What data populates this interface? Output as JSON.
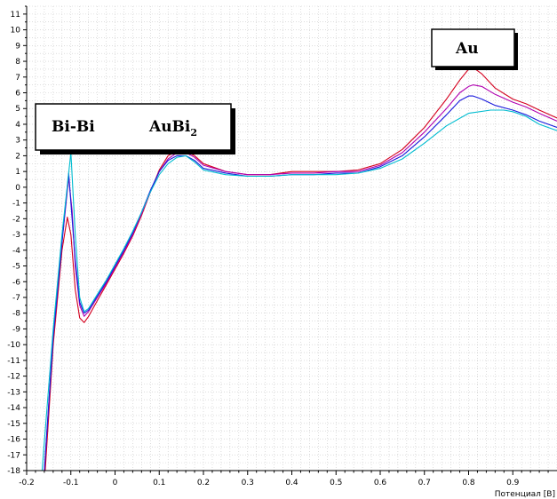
{
  "chart_data": {
    "type": "line",
    "title": "",
    "xlabel": "Потенциал [В]",
    "ylabel": "",
    "xlim": [
      -0.2,
      1.0
    ],
    "ylim": [
      -18,
      11.5
    ],
    "grid": true,
    "x_ticks": [
      "-0.2",
      "-0.1",
      "0",
      "0.1",
      "0.2",
      "0.3",
      "0.4",
      "0.5",
      "0.6",
      "0.7",
      "0.8",
      "0.9"
    ],
    "y_ticks": [
      "11",
      "10",
      "9",
      "8",
      "7",
      "6",
      "5",
      "4",
      "3",
      "2",
      "1",
      "0",
      "-1",
      "-2",
      "-3",
      "-4",
      "-5",
      "-6",
      "-7",
      "-8",
      "-9",
      "-10",
      "-11",
      "-12",
      "-13",
      "-14",
      "-15",
      "-16",
      "-17",
      "-18"
    ],
    "annotations": [
      {
        "label": "Bi-Bi",
        "sub": ""
      },
      {
        "label": "AuBi",
        "sub": "2"
      },
      {
        "label": "Au",
        "sub": ""
      }
    ],
    "series": [
      {
        "color": "#d4001e",
        "x": [
          -0.158,
          -0.14,
          -0.12,
          -0.108,
          -0.1,
          -0.09,
          -0.08,
          -0.07,
          -0.06,
          -0.04,
          -0.02,
          0.0,
          0.02,
          0.04,
          0.06,
          0.08,
          0.1,
          0.12,
          0.14,
          0.16,
          0.18,
          0.2,
          0.25,
          0.3,
          0.35,
          0.4,
          0.45,
          0.5,
          0.55,
          0.6,
          0.65,
          0.7,
          0.75,
          0.78,
          0.8,
          0.81,
          0.83,
          0.86,
          0.9,
          0.93,
          0.96,
          1.0
        ],
        "y": [
          -18,
          -10,
          -4,
          -1.9,
          -3,
          -6.5,
          -8.3,
          -8.6,
          -8.2,
          -7.2,
          -6.2,
          -5.2,
          -4.2,
          -3.1,
          -1.8,
          -0.3,
          1.1,
          2.0,
          2.3,
          2.3,
          2.0,
          1.5,
          1.0,
          0.8,
          0.8,
          1.0,
          1.0,
          1.0,
          1.1,
          1.5,
          2.4,
          3.8,
          5.6,
          6.8,
          7.5,
          7.6,
          7.2,
          6.3,
          5.6,
          5.3,
          4.9,
          4.4
        ]
      },
      {
        "color": "#b000b0",
        "x": [
          -0.16,
          -0.14,
          -0.12,
          -0.105,
          -0.097,
          -0.09,
          -0.08,
          -0.07,
          -0.06,
          -0.04,
          -0.02,
          0.0,
          0.02,
          0.04,
          0.06,
          0.08,
          0.1,
          0.12,
          0.14,
          0.16,
          0.18,
          0.2,
          0.25,
          0.3,
          0.35,
          0.4,
          0.45,
          0.5,
          0.55,
          0.6,
          0.65,
          0.7,
          0.75,
          0.78,
          0.8,
          0.81,
          0.83,
          0.86,
          0.9,
          0.93,
          0.96,
          1.0
        ],
        "y": [
          -18,
          -9.5,
          -3.5,
          0.6,
          -1.5,
          -5.0,
          -7.5,
          -8.2,
          -7.9,
          -7.0,
          -6.1,
          -5.1,
          -4.1,
          -3.0,
          -1.7,
          -0.3,
          1.0,
          1.8,
          2.2,
          2.2,
          1.9,
          1.4,
          1.0,
          0.8,
          0.8,
          0.9,
          0.9,
          1.0,
          1.0,
          1.4,
          2.2,
          3.5,
          5.0,
          6.0,
          6.4,
          6.5,
          6.4,
          5.9,
          5.4,
          5.1,
          4.7,
          4.2
        ]
      },
      {
        "color": "#1a1adc",
        "x": [
          -0.16,
          -0.14,
          -0.12,
          -0.105,
          -0.1,
          -0.09,
          -0.08,
          -0.07,
          -0.06,
          -0.04,
          -0.02,
          0.0,
          0.02,
          0.04,
          0.06,
          0.08,
          0.1,
          0.12,
          0.14,
          0.16,
          0.18,
          0.2,
          0.25,
          0.3,
          0.35,
          0.4,
          0.45,
          0.5,
          0.55,
          0.6,
          0.65,
          0.7,
          0.75,
          0.78,
          0.8,
          0.81,
          0.83,
          0.86,
          0.9,
          0.93,
          0.96,
          1.0
        ],
        "y": [
          -18,
          -9.5,
          -3.5,
          0.9,
          -1.0,
          -4.6,
          -7.3,
          -8.0,
          -7.8,
          -6.9,
          -6.0,
          -5.0,
          -4.0,
          -2.9,
          -1.6,
          -0.2,
          1.0,
          1.7,
          2.0,
          2.0,
          1.7,
          1.2,
          0.9,
          0.7,
          0.7,
          0.8,
          0.8,
          0.9,
          0.9,
          1.3,
          2.0,
          3.2,
          4.6,
          5.5,
          5.8,
          5.8,
          5.6,
          5.2,
          4.9,
          4.6,
          4.2,
          3.8
        ]
      },
      {
        "color": "#00bcd0",
        "x": [
          -0.165,
          -0.14,
          -0.12,
          -0.1,
          -0.09,
          -0.08,
          -0.07,
          -0.06,
          -0.04,
          -0.02,
          0.0,
          0.02,
          0.04,
          0.06,
          0.08,
          0.1,
          0.12,
          0.14,
          0.16,
          0.18,
          0.2,
          0.25,
          0.3,
          0.35,
          0.4,
          0.45,
          0.5,
          0.55,
          0.6,
          0.65,
          0.7,
          0.75,
          0.8,
          0.85,
          0.88,
          0.9,
          0.93,
          0.96,
          1.0
        ],
        "y": [
          -18,
          -9.0,
          -3.0,
          2.2,
          -3.0,
          -7.0,
          -7.9,
          -7.7,
          -6.8,
          -5.9,
          -4.9,
          -3.9,
          -2.8,
          -1.6,
          -0.3,
          0.8,
          1.5,
          1.9,
          2.0,
          1.6,
          1.1,
          0.8,
          0.7,
          0.7,
          0.8,
          0.8,
          0.8,
          0.9,
          1.2,
          1.8,
          2.8,
          3.9,
          4.7,
          4.9,
          4.9,
          4.8,
          4.5,
          4.0,
          3.6
        ]
      }
    ]
  }
}
